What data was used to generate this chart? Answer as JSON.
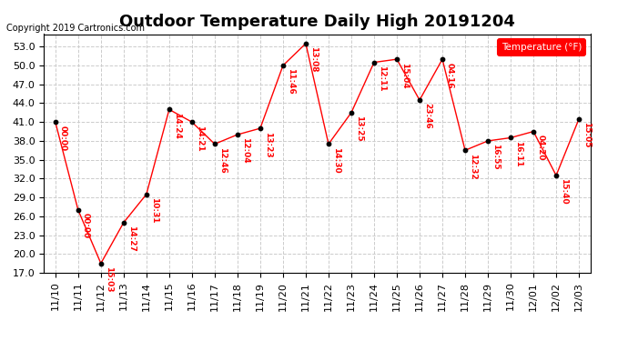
{
  "title": "Outdoor Temperature Daily High 20191204",
  "copyright": "Copyright 2019 Cartronics.com",
  "legend_label": "Temperature (°F)",
  "x_labels": [
    "11/10",
    "11/11",
    "11/12",
    "11/13",
    "11/14",
    "11/15",
    "11/16",
    "11/17",
    "11/18",
    "11/19",
    "11/20",
    "11/21",
    "11/22",
    "11/23",
    "11/24",
    "11/25",
    "11/26",
    "11/27",
    "11/28",
    "11/29",
    "11/30",
    "12/01",
    "12/02",
    "12/03"
  ],
  "y_values": [
    41.0,
    27.0,
    18.5,
    25.0,
    29.5,
    43.0,
    41.0,
    37.5,
    39.0,
    40.0,
    50.0,
    53.5,
    37.5,
    42.5,
    50.5,
    51.0,
    44.5,
    51.0,
    36.5,
    38.0,
    38.5,
    39.5,
    32.5,
    41.5
  ],
  "time_labels": [
    "00:00",
    "00:00",
    "15:03",
    "14:27",
    "10:31",
    "14:24",
    "14:21",
    "12:46",
    "12:04",
    "13:23",
    "11:46",
    "13:08",
    "14:30",
    "13:25",
    "12:11",
    "15:04",
    "23:46",
    "04:16",
    "12:32",
    "16:55",
    "16:11",
    "04:20",
    "15:40",
    "15:05"
  ],
  "y_min": 17.0,
  "y_max": 55.0,
  "y_ticks": [
    17.0,
    20.0,
    23.0,
    26.0,
    29.0,
    32.0,
    35.0,
    38.0,
    41.0,
    44.0,
    47.0,
    50.0,
    53.0
  ],
  "line_color": "red",
  "marker_color": "black",
  "title_fontsize": 13,
  "label_fontsize": 7,
  "tick_fontsize": 8,
  "bg_color": "white",
  "grid_color": "#cccccc"
}
